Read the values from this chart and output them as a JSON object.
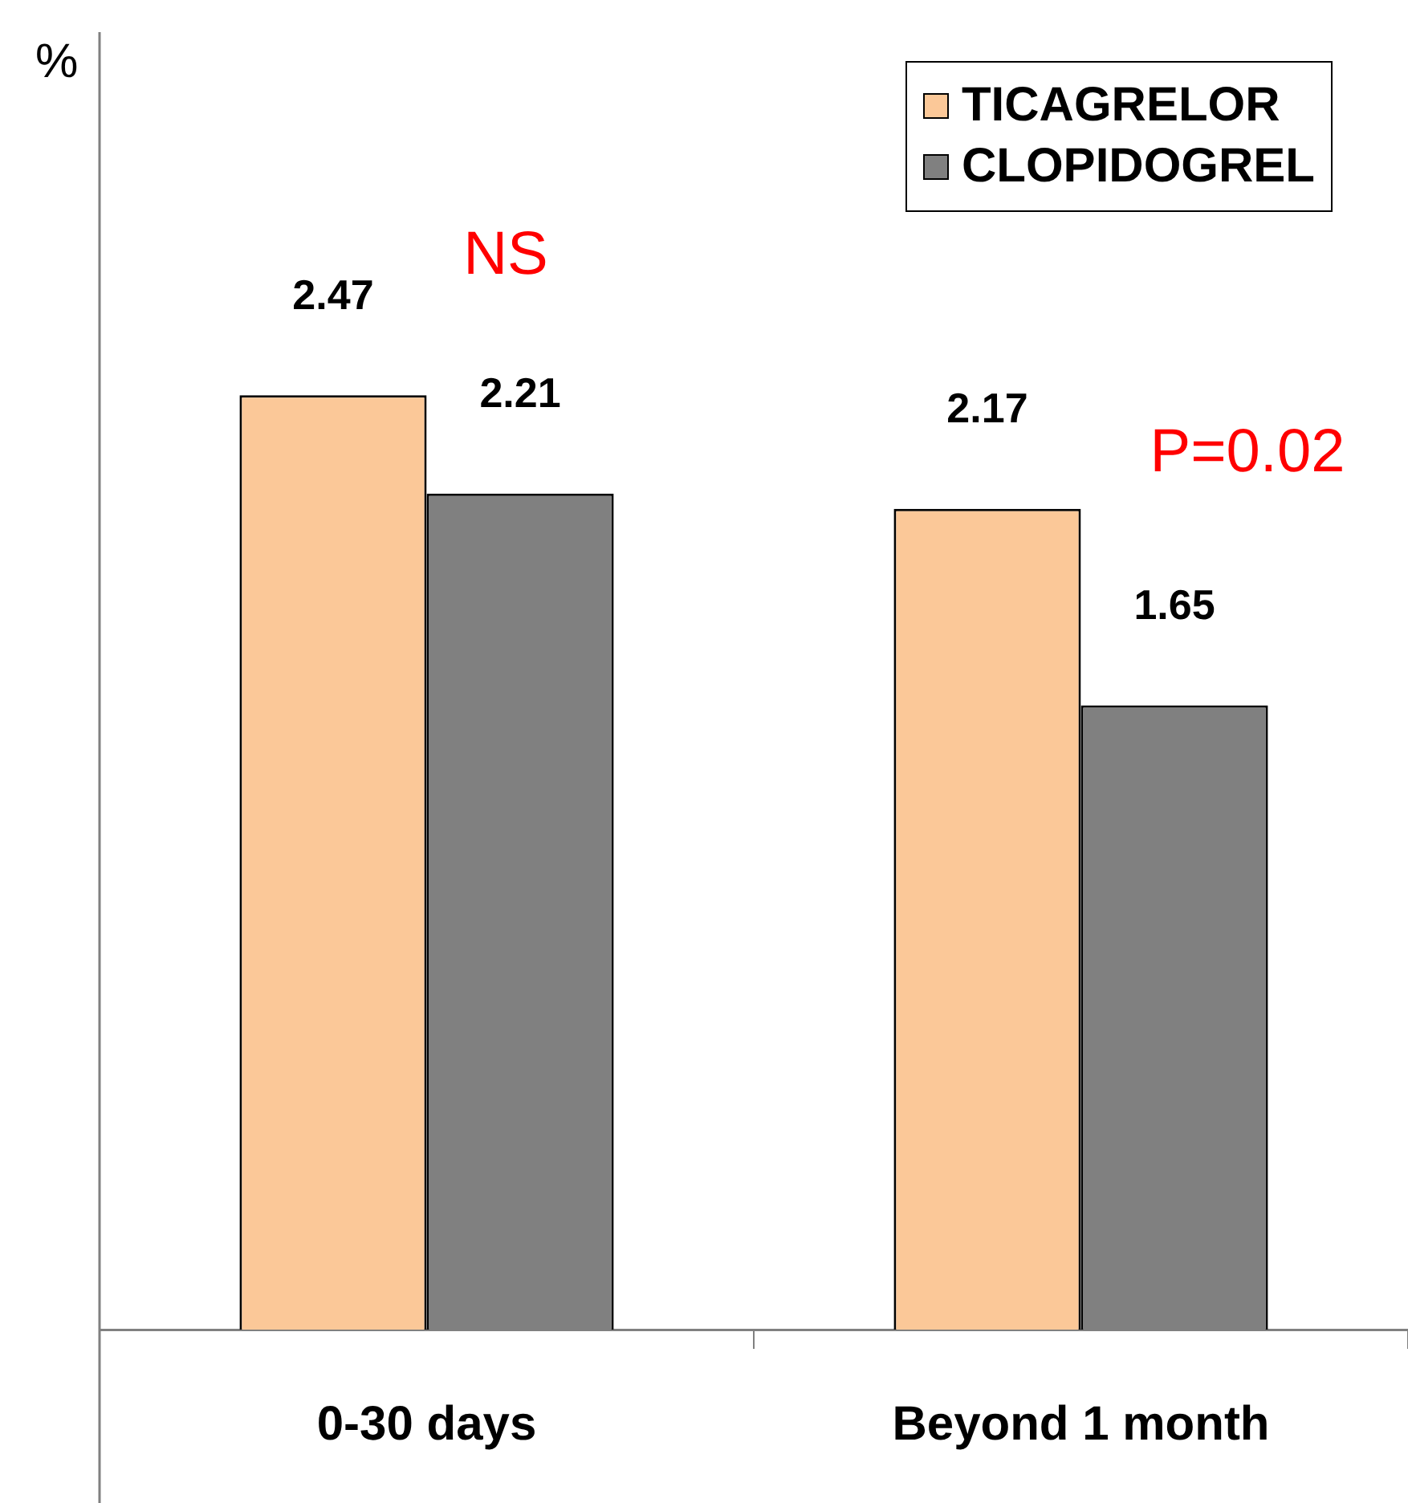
{
  "chart_data": {
    "type": "bar",
    "ylabel": "%",
    "categories": [
      "0-30 days",
      "Beyond 1 month"
    ],
    "series": [
      {
        "name": "TICAGRELOR",
        "color": "#fbc898",
        "values": [
          2.47,
          2.17
        ]
      },
      {
        "name": "CLOPIDOGREL",
        "color": "#808080",
        "values": [
          2.21,
          1.65
        ]
      }
    ],
    "ylim": [
      0,
      3.43
    ],
    "data_labels": true,
    "legend": "top right",
    "annotations": [
      "NS",
      "P=0.02"
    ]
  }
}
